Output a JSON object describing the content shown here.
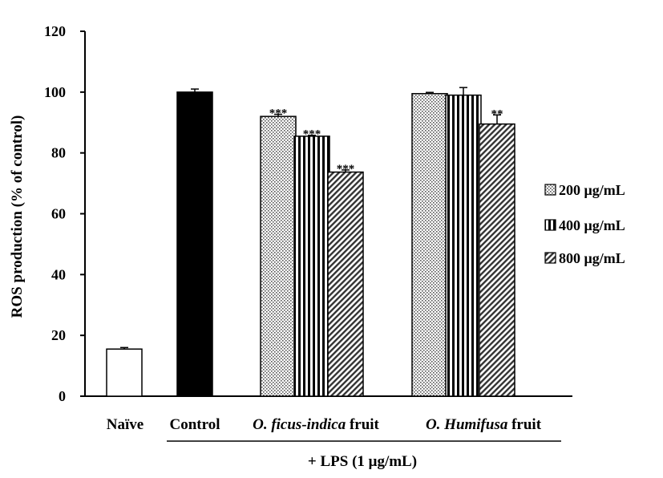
{
  "chart_data": {
    "type": "bar",
    "ylabel": "ROS production (% of control)",
    "ylim": [
      0,
      120
    ],
    "yticks": [
      "0",
      "20",
      "40",
      "60",
      "80",
      "100",
      "120"
    ],
    "categories": [
      {
        "label": "Naïve",
        "label_parts": [
          {
            "text": "Naïve",
            "italic": false
          }
        ]
      },
      {
        "label": "Control",
        "label_parts": [
          {
            "text": "Control",
            "italic": false
          }
        ]
      },
      {
        "label": "O. ficus-indica fruit",
        "label_parts": [
          {
            "text": "O. ficus-indica",
            "italic": true
          },
          {
            "text": " fruit",
            "italic": false
          }
        ]
      },
      {
        "label": "O. Humifusa fruit",
        "label_parts": [
          {
            "text": "O. Humifusa",
            "italic": true
          },
          {
            "text": " fruit",
            "italic": false
          }
        ]
      }
    ],
    "group_label": "+ LPS (1 μg/mL)",
    "legend": {
      "position": "right",
      "entries": [
        {
          "label": "200 μg/mL",
          "pattern": "dots"
        },
        {
          "label": "400 μg/mL",
          "pattern": "vertical"
        },
        {
          "label": "800 μg/mL",
          "pattern": "diagonal"
        }
      ]
    },
    "bars": [
      {
        "category": "Naïve",
        "pattern": "white",
        "value": 15.5,
        "error": 0.5,
        "sig": ""
      },
      {
        "category": "Control",
        "pattern": "black",
        "value": 100,
        "error": 1,
        "sig": ""
      },
      {
        "category": "O. ficus-indica fruit",
        "series": "200 μg/mL",
        "pattern": "dots",
        "value": 92,
        "error": 0.7,
        "sig": "***"
      },
      {
        "category": "O. ficus-indica fruit",
        "series": "400 μg/mL",
        "pattern": "vertical",
        "value": 85.5,
        "error": 0.3,
        "sig": "***"
      },
      {
        "category": "O. ficus-indica fruit",
        "series": "800 μg/mL",
        "pattern": "diagonal",
        "value": 73.7,
        "error": 0.7,
        "sig": "***"
      },
      {
        "category": "O. Humifusa fruit",
        "series": "200 μg/mL",
        "pattern": "dots",
        "value": 99.5,
        "error": 0.4,
        "sig": ""
      },
      {
        "category": "O. Humifusa fruit",
        "series": "400 μg/mL",
        "pattern": "vertical",
        "value": 99,
        "error": 2.5,
        "sig": ""
      },
      {
        "category": "O. Humifusa fruit",
        "series": "800 μg/mL",
        "pattern": "diagonal",
        "value": 89.5,
        "error": 3,
        "sig": "**"
      }
    ]
  }
}
